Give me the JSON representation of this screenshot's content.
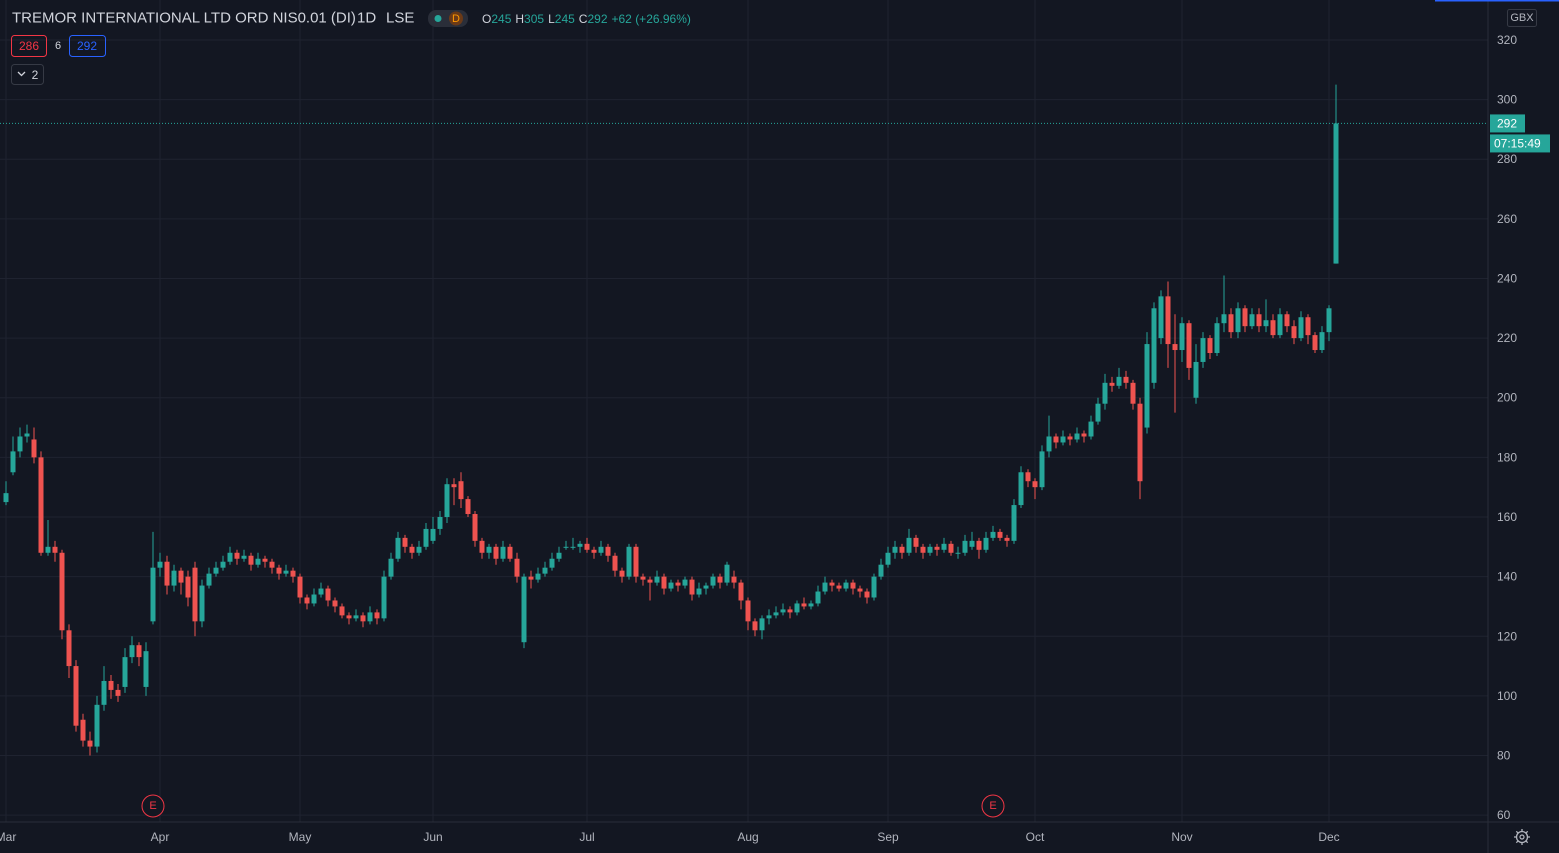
{
  "chart_data": {
    "type": "candlestick",
    "title": "TREMOR INTERNATIONAL LTD ORD NIS0.01 (DI)",
    "interval": "1D",
    "exchange": "LSE",
    "badge": "D",
    "legend_labels": [
      "O",
      "H",
      "L",
      "C"
    ],
    "change": "+62 (+26.96%)",
    "bid": 286,
    "spread": 6,
    "ask": 292,
    "indicators": 2,
    "currency": "GBX",
    "countdown": "07:15:49",
    "up_color": "#26a69a",
    "down_color": "#ef5350",
    "grid": true,
    "ylim": [
      57.7,
      333.4
    ],
    "yticks": [
      60,
      80,
      100,
      120,
      140,
      160,
      180,
      200,
      220,
      240,
      260,
      280,
      300,
      320
    ],
    "categories": [
      "Mar",
      null,
      null,
      null,
      null,
      null,
      null,
      null,
      null,
      null,
      null,
      null,
      null,
      null,
      null,
      null,
      null,
      null,
      null,
      null,
      null,
      null,
      "Apr",
      null,
      null,
      null,
      null,
      null,
      null,
      null,
      null,
      null,
      null,
      null,
      null,
      null,
      null,
      null,
      null,
      null,
      null,
      null,
      "May",
      null,
      null,
      null,
      null,
      null,
      null,
      null,
      null,
      null,
      null,
      null,
      null,
      null,
      null,
      null,
      null,
      null,
      null,
      "Jun",
      null,
      null,
      null,
      null,
      null,
      null,
      null,
      null,
      null,
      null,
      null,
      null,
      null,
      null,
      null,
      null,
      null,
      null,
      null,
      null,
      null,
      "Jul",
      null,
      null,
      null,
      null,
      null,
      null,
      null,
      null,
      null,
      null,
      null,
      null,
      null,
      null,
      null,
      null,
      null,
      null,
      null,
      null,
      null,
      null,
      "Aug",
      null,
      null,
      null,
      null,
      null,
      null,
      null,
      null,
      null,
      null,
      null,
      null,
      null,
      null,
      null,
      null,
      null,
      null,
      null,
      "Sep",
      null,
      null,
      null,
      null,
      null,
      null,
      null,
      null,
      null,
      null,
      null,
      null,
      null,
      null,
      null,
      null,
      null,
      null,
      null,
      null,
      "Oct",
      null,
      null,
      null,
      null,
      null,
      null,
      null,
      null,
      null,
      null,
      null,
      null,
      null,
      null,
      null,
      null,
      null,
      null,
      null,
      null,
      "Nov",
      null,
      null,
      null,
      null,
      null,
      null,
      null,
      null,
      null,
      null,
      null,
      null,
      null,
      null,
      null,
      null,
      null,
      null,
      null,
      null,
      "Dec"
    ],
    "events": [
      null,
      null,
      null,
      null,
      null,
      null,
      null,
      null,
      null,
      null,
      null,
      null,
      null,
      null,
      null,
      null,
      null,
      null,
      null,
      null,
      null,
      "E",
      null,
      null,
      null,
      null,
      null,
      null,
      null,
      null,
      null,
      null,
      null,
      null,
      null,
      null,
      null,
      null,
      null,
      null,
      null,
      null,
      null,
      null,
      null,
      null,
      null,
      null,
      null,
      null,
      null,
      null,
      null,
      null,
      null,
      null,
      null,
      null,
      null,
      null,
      null,
      null,
      null,
      null,
      null,
      null,
      null,
      null,
      null,
      null,
      null,
      null,
      null,
      null,
      null,
      null,
      null,
      null,
      null,
      null,
      null,
      null,
      null,
      null,
      null,
      null,
      null,
      null,
      null,
      null,
      null,
      null,
      null,
      null,
      null,
      null,
      null,
      null,
      null,
      null,
      null,
      null,
      null,
      null,
      null,
      null,
      null,
      null,
      null,
      null,
      null,
      null,
      null,
      null,
      null,
      null,
      null,
      null,
      null,
      null,
      null,
      null,
      null,
      null,
      null,
      null,
      null,
      null,
      null,
      null,
      null,
      null,
      null,
      null,
      null,
      null,
      null,
      null,
      null,
      null,
      null,
      "E",
      null,
      null,
      null,
      null,
      null,
      null,
      null,
      null,
      null,
      null,
      null,
      null,
      null,
      null,
      null,
      null,
      null,
      null,
      null,
      null,
      null,
      null,
      null,
      null,
      null,
      null,
      null,
      null,
      null,
      null,
      null,
      null,
      null,
      null,
      null,
      null,
      null,
      null,
      null,
      null,
      null,
      null,
      null,
      null,
      null,
      null,
      null,
      null,
      null,
      null
    ],
    "ohlc": [
      [
        165,
        172,
        164,
        168
      ],
      [
        175,
        187,
        174,
        182
      ],
      [
        182,
        190,
        180,
        187
      ],
      [
        187,
        191,
        185,
        188
      ],
      [
        186,
        190,
        178,
        180
      ],
      [
        180,
        182,
        147,
        148
      ],
      [
        148,
        159,
        147,
        150
      ],
      [
        150,
        152,
        145,
        148
      ],
      [
        148,
        149,
        119,
        122
      ],
      [
        122,
        124,
        106,
        110
      ],
      [
        110,
        112,
        88,
        90
      ],
      [
        92,
        94,
        83,
        85
      ],
      [
        85,
        88,
        80,
        83
      ],
      [
        83,
        100,
        81,
        97
      ],
      [
        97,
        110,
        95,
        105
      ],
      [
        105,
        107,
        99,
        102
      ],
      [
        102,
        104,
        98,
        100
      ],
      [
        103,
        116,
        101,
        113
      ],
      [
        113,
        120,
        111,
        117
      ],
      [
        117,
        118,
        110,
        113
      ],
      [
        103,
        118,
        100,
        115
      ],
      [
        125,
        155,
        124,
        143
      ],
      [
        143,
        148,
        140,
        145
      ],
      [
        145,
        147,
        134,
        137
      ],
      [
        137,
        144,
        135,
        142
      ],
      [
        142,
        143,
        134,
        138
      ],
      [
        140,
        142,
        130,
        133
      ],
      [
        143,
        145,
        120,
        125
      ],
      [
        125,
        139,
        123,
        137
      ],
      [
        137,
        143,
        136,
        141
      ],
      [
        141,
        145,
        140,
        143
      ],
      [
        143,
        147,
        142,
        145
      ],
      [
        145,
        150,
        144,
        148
      ],
      [
        148,
        149,
        144,
        146
      ],
      [
        146,
        149,
        145,
        147
      ],
      [
        147,
        148,
        142,
        144
      ],
      [
        144,
        148,
        143,
        146
      ],
      [
        146,
        147,
        143,
        145
      ],
      [
        145,
        146,
        141,
        143
      ],
      [
        143,
        144,
        139,
        141
      ],
      [
        141,
        144,
        140,
        142
      ],
      [
        142,
        143,
        138,
        140
      ],
      [
        140,
        141,
        131,
        133
      ],
      [
        133,
        134,
        129,
        131
      ],
      [
        131,
        136,
        130,
        134
      ],
      [
        134,
        138,
        133,
        136
      ],
      [
        136,
        137,
        130,
        132
      ],
      [
        132,
        133,
        128,
        130
      ],
      [
        130,
        131,
        126,
        127
      ],
      [
        127,
        128,
        124,
        126
      ],
      [
        126,
        129,
        125,
        127
      ],
      [
        127,
        128,
        123,
        125
      ],
      [
        125,
        130,
        124,
        128
      ],
      [
        128,
        129,
        124,
        126
      ],
      [
        126,
        142,
        125,
        140
      ],
      [
        140,
        148,
        139,
        146
      ],
      [
        146,
        155,
        145,
        153
      ],
      [
        153,
        154,
        148,
        150
      ],
      [
        150,
        151,
        146,
        148
      ],
      [
        148,
        152,
        147,
        150
      ],
      [
        150,
        158,
        149,
        156
      ],
      [
        152,
        160,
        151,
        156
      ],
      [
        156,
        162,
        154,
        160
      ],
      [
        160,
        173,
        158,
        171
      ],
      [
        171,
        173,
        164,
        170
      ],
      [
        172,
        175,
        163,
        166
      ],
      [
        166,
        167,
        160,
        161
      ],
      [
        161,
        162,
        150,
        152
      ],
      [
        152,
        153,
        146,
        148
      ],
      [
        148,
        151,
        146,
        150
      ],
      [
        150,
        151,
        144,
        146
      ],
      [
        146,
        152,
        145,
        150
      ],
      [
        150,
        151,
        145,
        146
      ],
      [
        146,
        148,
        138,
        140
      ],
      [
        118,
        141,
        116,
        140
      ],
      [
        140,
        142,
        136,
        139
      ],
      [
        139,
        143,
        138,
        141
      ],
      [
        141,
        145,
        140,
        143
      ],
      [
        143,
        148,
        142,
        146
      ],
      [
        146,
        150,
        145,
        148
      ],
      [
        150,
        152,
        149,
        150
      ],
      [
        150,
        153,
        149,
        150
      ],
      [
        150,
        152,
        148,
        151
      ],
      [
        151,
        153,
        148,
        149
      ],
      [
        149,
        150,
        146,
        148
      ],
      [
        148,
        152,
        147,
        150
      ],
      [
        150,
        151,
        145,
        147
      ],
      [
        147,
        148,
        140,
        142
      ],
      [
        142,
        143,
        138,
        140
      ],
      [
        140,
        151,
        139,
        150
      ],
      [
        150,
        151,
        138,
        140
      ],
      [
        140,
        141,
        137,
        139
      ],
      [
        139,
        140,
        132,
        138
      ],
      [
        138,
        142,
        137,
        140
      ],
      [
        140,
        141,
        134,
        136
      ],
      [
        136,
        139,
        135,
        138
      ],
      [
        138,
        139,
        135,
        137
      ],
      [
        137,
        140,
        136,
        139
      ],
      [
        139,
        140,
        132,
        134
      ],
      [
        134,
        138,
        133,
        136
      ],
      [
        136,
        138,
        134,
        137
      ],
      [
        137,
        141,
        136,
        140
      ],
      [
        140,
        141,
        136,
        138
      ],
      [
        138,
        145,
        137,
        144
      ],
      [
        140,
        142,
        136,
        138
      ],
      [
        138,
        139,
        129,
        132
      ],
      [
        132,
        133,
        122,
        125
      ],
      [
        125,
        126,
        120,
        122
      ],
      [
        122,
        127,
        119,
        126
      ],
      [
        126,
        129,
        124,
        127
      ],
      [
        127,
        130,
        126,
        128
      ],
      [
        128,
        131,
        127,
        129
      ],
      [
        129,
        130,
        126,
        128
      ],
      [
        128,
        132,
        127,
        131
      ],
      [
        131,
        133,
        129,
        130
      ],
      [
        130,
        132,
        129,
        131
      ],
      [
        131,
        137,
        130,
        135
      ],
      [
        135,
        140,
        134,
        138
      ],
      [
        138,
        139,
        135,
        137
      ],
      [
        137,
        138,
        135,
        136
      ],
      [
        136,
        139,
        135,
        138
      ],
      [
        138,
        139,
        134,
        136
      ],
      [
        136,
        137,
        133,
        135
      ],
      [
        135,
        136,
        131,
        133
      ],
      [
        133,
        141,
        132,
        140
      ],
      [
        140,
        146,
        139,
        144
      ],
      [
        144,
        150,
        143,
        148
      ],
      [
        148,
        152,
        146,
        150
      ],
      [
        150,
        151,
        146,
        148
      ],
      [
        148,
        156,
        147,
        153
      ],
      [
        153,
        154,
        148,
        150
      ],
      [
        150,
        151,
        146,
        148
      ],
      [
        148,
        151,
        147,
        150
      ],
      [
        150,
        151,
        147,
        149
      ],
      [
        149,
        153,
        148,
        151
      ],
      [
        151,
        152,
        147,
        148
      ],
      [
        148,
        150,
        146,
        148
      ],
      [
        148,
        154,
        147,
        152
      ],
      [
        150,
        155,
        149,
        152
      ],
      [
        152,
        153,
        146,
        149
      ],
      [
        149,
        155,
        148,
        153
      ],
      [
        153,
        157,
        152,
        155
      ],
      [
        155,
        156,
        152,
        153
      ],
      [
        153,
        154,
        150,
        152
      ],
      [
        152,
        166,
        151,
        164
      ],
      [
        164,
        177,
        163,
        175
      ],
      [
        175,
        176,
        170,
        172
      ],
      [
        172,
        173,
        166,
        170
      ],
      [
        170,
        184,
        169,
        182
      ],
      [
        182,
        194,
        180,
        187
      ],
      [
        187,
        188,
        183,
        185
      ],
      [
        185,
        189,
        184,
        187
      ],
      [
        187,
        188,
        184,
        186
      ],
      [
        186,
        190,
        185,
        188
      ],
      [
        188,
        189,
        185,
        187
      ],
      [
        187,
        194,
        186,
        192
      ],
      [
        192,
        200,
        191,
        198
      ],
      [
        198,
        208,
        196,
        205
      ],
      [
        205,
        207,
        202,
        204
      ],
      [
        204,
        210,
        203,
        207
      ],
      [
        207,
        209,
        203,
        205
      ],
      [
        205,
        206,
        196,
        198
      ],
      [
        198,
        200,
        166,
        172
      ],
      [
        190,
        222,
        188,
        218
      ],
      [
        205,
        232,
        203,
        230
      ],
      [
        220,
        236,
        218,
        234
      ],
      [
        234,
        239,
        210,
        218
      ],
      [
        218,
        228,
        195,
        216
      ],
      [
        216,
        227,
        212,
        225
      ],
      [
        225,
        226,
        206,
        210
      ],
      [
        200,
        218,
        198,
        212
      ],
      [
        212,
        222,
        210,
        220
      ],
      [
        220,
        221,
        213,
        215
      ],
      [
        215,
        227,
        214,
        225
      ],
      [
        225,
        241,
        222,
        228
      ],
      [
        228,
        230,
        220,
        222
      ],
      [
        222,
        232,
        220,
        230
      ],
      [
        230,
        231,
        222,
        224
      ],
      [
        224,
        230,
        223,
        228
      ],
      [
        228,
        230,
        222,
        224
      ],
      [
        224,
        233,
        222,
        226
      ],
      [
        226,
        228,
        220,
        221
      ],
      [
        221,
        230,
        220,
        228
      ],
      [
        228,
        229,
        222,
        224
      ],
      [
        224,
        226,
        218,
        220
      ],
      [
        220,
        229,
        219,
        227
      ],
      [
        227,
        228,
        218,
        221
      ],
      [
        221,
        222,
        215,
        216
      ],
      [
        216,
        224,
        215,
        222
      ],
      [
        222,
        231,
        219,
        230
      ],
      [
        245,
        305,
        245,
        292
      ],
      null
    ]
  }
}
